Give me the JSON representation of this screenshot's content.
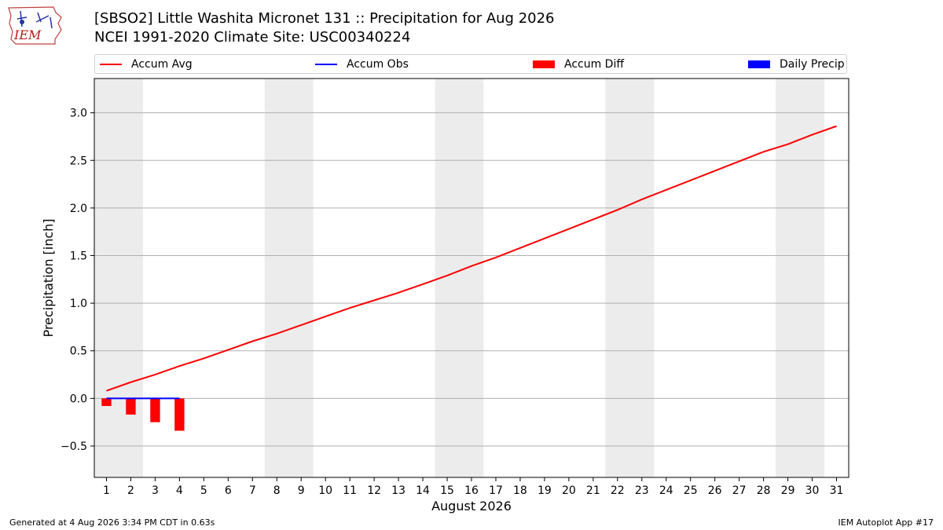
{
  "header": {
    "title_line1": "[SBSO2] Little Washita Micronet 131 :: Precipitation for Aug 2026",
    "title_line2": "NCEI 1991-2020 Climate Site: USC00340224",
    "logo_text": "IEM"
  },
  "legend": {
    "items": [
      {
        "label": "Accum Avg",
        "kind": "line",
        "color": "#ff0000"
      },
      {
        "label": "Accum Obs",
        "kind": "line",
        "color": "#0000ff"
      },
      {
        "label": "Accum Diff",
        "kind": "box",
        "color": "#ff0000"
      },
      {
        "label": "Daily Precip",
        "kind": "box",
        "color": "#0000ff"
      }
    ]
  },
  "chart_data": {
    "type": "line",
    "xlabel": "August 2026",
    "ylabel": "Precipitation [inch]",
    "ylim": [
      -0.83,
      3.36
    ],
    "xlim": [
      0.5,
      31.5
    ],
    "yticks": [
      -0.5,
      0.0,
      0.5,
      1.0,
      1.5,
      2.0,
      2.5,
      3.0
    ],
    "ytick_labels": [
      "−0.5",
      "0.0",
      "0.5",
      "1.0",
      "1.5",
      "2.0",
      "2.5",
      "3.0"
    ],
    "x": [
      1,
      2,
      3,
      4,
      5,
      6,
      7,
      8,
      9,
      10,
      11,
      12,
      13,
      14,
      15,
      16,
      17,
      18,
      19,
      20,
      21,
      22,
      23,
      24,
      25,
      26,
      27,
      28,
      29,
      30,
      31
    ],
    "xtick_labels": [
      "1",
      "2",
      "3",
      "4",
      "5",
      "6",
      "7",
      "8",
      "9",
      "10",
      "11",
      "12",
      "13",
      "14",
      "15",
      "16",
      "17",
      "18",
      "19",
      "20",
      "21",
      "22",
      "23",
      "24",
      "25",
      "26",
      "27",
      "28",
      "29",
      "30",
      "31"
    ],
    "weekend_bands": [
      [
        0.5,
        2.5
      ],
      [
        7.5,
        9.5
      ],
      [
        14.5,
        16.5
      ],
      [
        21.5,
        23.5
      ],
      [
        28.5,
        30.5
      ]
    ],
    "grid": "horizontal",
    "legend_position": "top",
    "series": [
      {
        "name": "Accum Avg",
        "kind": "line",
        "color": "#ff0000",
        "x": [
          1,
          2,
          3,
          4,
          5,
          6,
          7,
          8,
          9,
          10,
          11,
          12,
          13,
          14,
          15,
          16,
          17,
          18,
          19,
          20,
          21,
          22,
          23,
          24,
          25,
          26,
          27,
          28,
          29,
          30,
          31
        ],
        "values": [
          0.08,
          0.17,
          0.25,
          0.34,
          0.42,
          0.51,
          0.6,
          0.68,
          0.77,
          0.86,
          0.95,
          1.03,
          1.11,
          1.2,
          1.29,
          1.39,
          1.48,
          1.58,
          1.68,
          1.78,
          1.88,
          1.98,
          2.09,
          2.19,
          2.29,
          2.39,
          2.49,
          2.59,
          2.67,
          2.77,
          2.86
        ]
      },
      {
        "name": "Accum Obs",
        "kind": "line",
        "color": "#0000ff",
        "x": [
          1,
          2,
          3,
          4
        ],
        "values": [
          0.0,
          0.0,
          0.0,
          0.0
        ]
      },
      {
        "name": "Accum Diff",
        "kind": "bar",
        "color": "#ff0000",
        "x": [
          1,
          2,
          3,
          4
        ],
        "values": [
          -0.08,
          -0.17,
          -0.25,
          -0.34
        ]
      },
      {
        "name": "Daily Precip",
        "kind": "bar",
        "color": "#0000ff",
        "x": [
          1,
          2,
          3,
          4
        ],
        "values": [
          0.0,
          0.0,
          0.0,
          0.0
        ]
      }
    ],
    "colors": {
      "band": "#ececec",
      "grid": "#b0b0b0"
    }
  },
  "footer": {
    "left": "Generated at 4 Aug 2026 3:34 PM CDT in 0.63s",
    "right": "IEM Autoplot App #17"
  }
}
